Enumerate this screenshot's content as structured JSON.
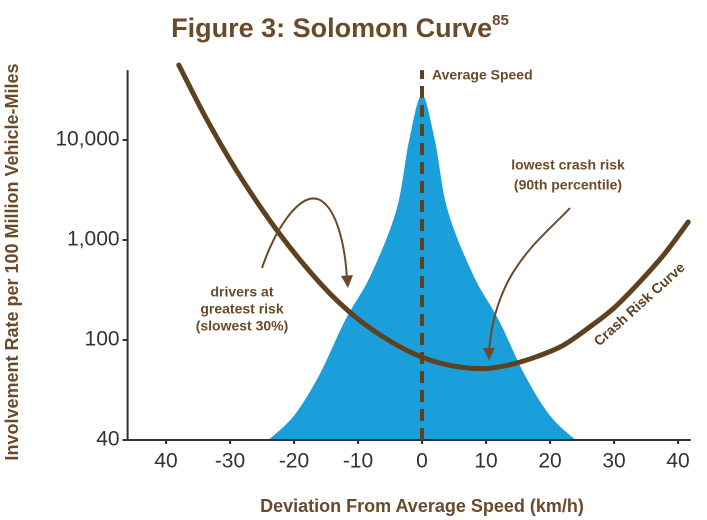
{
  "chart_data": {
    "type": "line",
    "title": "Figure 3: Solomon Curve",
    "title_superscript": "85",
    "x_label": "Deviation From Average Speed (km/h)",
    "y_label": "Involvement Rate per 100 Million Vehicle-Miles",
    "log_scale_y": true,
    "grid": false,
    "xlim": [
      -46,
      42
    ],
    "ylim": [
      40,
      50000
    ],
    "xticks": [
      {
        "value": -40,
        "label": "40"
      },
      -30,
      -20,
      -10,
      0,
      10,
      20,
      30,
      40
    ],
    "yticks": [
      40,
      100,
      {
        "value": 1000,
        "label": "1,000"
      },
      {
        "value": 10000,
        "label": "10,000"
      }
    ],
    "series": [
      {
        "name": "Crash Risk Curve",
        "color": "#5e4220",
        "x": [
          -38,
          -34,
          -30,
          -26,
          -22,
          -18,
          -14,
          -10,
          -6,
          -2,
          2,
          6,
          10,
          14,
          18,
          22,
          26,
          30,
          34,
          38,
          41.6
        ],
        "values": [
          56234,
          17783,
          6310,
          2512,
          1096,
          525,
          275,
          162,
          107,
          90,
          82,
          78,
          77,
          80,
          86,
          95,
          132,
          209,
          380,
          741,
          1514
        ]
      }
    ],
    "distribution": {
      "color": "#1a9fdb",
      "x": [
        -24,
        -20,
        -16,
        -12,
        -8,
        -4,
        -2,
        0,
        2,
        4,
        8,
        12,
        16,
        20,
        24
      ],
      "values": [
        40,
        50,
        73,
        158,
        447,
        1995,
        10000,
        28184,
        10000,
        1995,
        447,
        158,
        73,
        50,
        40
      ]
    },
    "reference_x": 0,
    "annotations": [
      "Average Speed",
      "lowest crash risk",
      "(90th percentile)",
      "drivers at",
      "greatest risk",
      "(slowest 30%)"
    ]
  }
}
